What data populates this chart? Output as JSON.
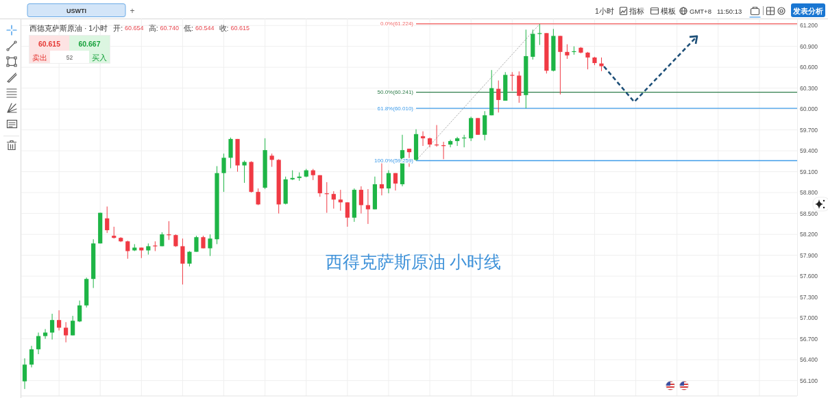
{
  "chart_data": {
    "type": "candlestick",
    "title": "西德克萨斯原油 · 1小时",
    "categories": [
      null,
      null,
      null,
      null,
      null,
      null,
      null,
      null,
      null,
      null,
      null,
      null,
      null,
      null,
      null,
      null,
      null,
      null,
      null,
      null,
      null,
      null,
      null,
      null,
      null,
      null,
      null,
      null,
      null,
      null,
      null,
      null,
      null,
      null,
      null,
      null,
      null,
      null,
      null,
      null,
      null,
      null,
      null,
      null,
      null,
      null,
      null,
      null,
      null,
      null,
      null,
      null,
      null,
      null,
      null,
      null,
      null,
      null,
      null,
      null,
      null,
      null,
      null,
      null,
      null,
      null,
      null,
      null,
      null,
      null,
      null,
      null,
      null,
      null,
      null,
      null,
      null,
      null,
      null,
      null,
      null,
      null,
      null,
      null,
      null,
      null,
      null,
      null,
      null,
      null,
      null,
      null,
      null,
      null,
      null,
      null,
      null,
      null,
      null,
      null,
      null,
      null,
      null,
      null,
      null,
      null,
      null,
      null,
      null,
      null,
      null,
      null,
      null
    ],
    "ohlc": [
      [
        56.09,
        56.42,
        55.98,
        56.33
      ],
      [
        56.33,
        56.6,
        56.29,
        56.55
      ],
      [
        56.55,
        56.79,
        56.48,
        56.74
      ],
      [
        56.74,
        56.84,
        56.7,
        56.79
      ],
      [
        56.79,
        57.06,
        56.69,
        56.97
      ],
      [
        56.97,
        57.11,
        56.82,
        56.86
      ],
      [
        56.86,
        56.94,
        56.65,
        56.75
      ],
      [
        56.75,
        57.03,
        56.75,
        56.96
      ],
      [
        56.95,
        57.25,
        56.94,
        57.18
      ],
      [
        57.18,
        57.58,
        57.15,
        57.56
      ],
      [
        57.56,
        58.13,
        57.43,
        58.07
      ],
      [
        58.07,
        58.51,
        58.07,
        58.51
      ],
      [
        58.43,
        58.6,
        58.22,
        58.26
      ],
      [
        58.18,
        58.31,
        58.14,
        58.15
      ],
      [
        58.15,
        58.16,
        58.09,
        58.1
      ],
      [
        58.1,
        58.11,
        57.85,
        57.96
      ],
      [
        57.97,
        58.06,
        57.96,
        58.01
      ],
      [
        58.01,
        58.01,
        57.86,
        57.97
      ],
      [
        57.97,
        58.07,
        57.91,
        58.03
      ],
      [
        58.04,
        58.1,
        57.96,
        58.03
      ],
      [
        58.03,
        58.23,
        58.03,
        58.2
      ],
      [
        58.2,
        58.39,
        58.12,
        58.19
      ],
      [
        58.19,
        58.2,
        58.02,
        58.03
      ],
      [
        58.03,
        58.14,
        57.48,
        57.78
      ],
      [
        57.78,
        57.96,
        57.74,
        57.95
      ],
      [
        57.95,
        58.18,
        57.95,
        58.16
      ],
      [
        58.16,
        58.18,
        58.0,
        58.0
      ],
      [
        58.0,
        58.2,
        57.89,
        58.14
      ],
      [
        58.13,
        59.18,
        58.06,
        59.08
      ],
      [
        59.08,
        59.36,
        58.81,
        59.3
      ],
      [
        59.3,
        59.59,
        59.15,
        59.57
      ],
      [
        59.57,
        59.57,
        59.1,
        59.19
      ],
      [
        59.19,
        59.26,
        58.94,
        59.24
      ],
      [
        59.24,
        59.25,
        58.8,
        58.81
      ],
      [
        58.81,
        58.86,
        58.62,
        58.63
      ],
      [
        58.87,
        59.58,
        58.85,
        59.41
      ],
      [
        59.33,
        59.36,
        59.17,
        59.27
      ],
      [
        59.27,
        59.28,
        58.5,
        58.63
      ],
      [
        58.64,
        59.03,
        58.63,
        58.99
      ],
      [
        58.99,
        59.12,
        58.98,
        59.01
      ],
      [
        59.01,
        59.09,
        58.97,
        59.03
      ],
      [
        59.03,
        59.14,
        59.02,
        59.12
      ],
      [
        59.12,
        59.14,
        58.98,
        59.05
      ],
      [
        59.05,
        59.05,
        58.74,
        58.79
      ],
      [
        58.79,
        58.95,
        58.51,
        58.78
      ],
      [
        58.78,
        58.82,
        58.57,
        58.7
      ],
      [
        58.7,
        58.84,
        58.54,
        58.66
      ],
      [
        58.66,
        58.66,
        58.31,
        58.44
      ],
      [
        58.44,
        58.86,
        58.38,
        58.84
      ],
      [
        58.84,
        58.89,
        58.5,
        58.62
      ],
      [
        58.62,
        58.85,
        58.35,
        58.56
      ],
      [
        58.56,
        59.03,
        58.56,
        58.92
      ],
      [
        58.92,
        59.24,
        58.76,
        58.86
      ],
      [
        58.86,
        59.12,
        58.79,
        59.08
      ],
      [
        59.08,
        59.08,
        58.83,
        58.93
      ],
      [
        58.92,
        59.63,
        58.89,
        59.41
      ],
      [
        59.43,
        59.43,
        59.17,
        59.38
      ],
      [
        59.27,
        59.71,
        59.26,
        59.64
      ],
      [
        59.61,
        59.68,
        59.47,
        59.58
      ],
      [
        59.58,
        59.59,
        59.45,
        59.49
      ],
      [
        59.49,
        59.77,
        59.46,
        59.48
      ],
      [
        59.48,
        59.53,
        59.28,
        59.47
      ],
      [
        59.49,
        59.56,
        59.45,
        59.54
      ],
      [
        59.54,
        59.6,
        59.47,
        59.58
      ],
      [
        59.58,
        59.63,
        59.45,
        59.59
      ],
      [
        59.58,
        59.89,
        59.54,
        59.87
      ],
      [
        59.87,
        59.87,
        59.63,
        59.63
      ],
      [
        59.63,
        59.97,
        59.55,
        59.91
      ],
      [
        59.91,
        60.56,
        59.91,
        60.3
      ],
      [
        60.29,
        60.41,
        59.95,
        60.13
      ],
      [
        60.12,
        60.53,
        60.12,
        60.49
      ],
      [
        60.49,
        60.53,
        60.26,
        60.48
      ],
      [
        60.48,
        60.54,
        60.09,
        60.19
      ],
      [
        60.2,
        61.14,
        60.01,
        60.76
      ],
      [
        60.75,
        61.14,
        60.71,
        61.08
      ],
      [
        61.08,
        61.22,
        60.92,
        61.09
      ],
      [
        61.09,
        61.09,
        60.51,
        60.55
      ],
      [
        60.55,
        61.15,
        60.54,
        61.05
      ],
      [
        61.05,
        61.05,
        60.21,
        60.82
      ],
      [
        60.82,
        60.93,
        60.72,
        60.77
      ],
      [
        60.82,
        60.9,
        60.78,
        60.83
      ],
      [
        60.88,
        60.89,
        60.8,
        60.81
      ],
      [
        60.81,
        60.82,
        60.57,
        60.74
      ],
      [
        60.74,
        60.75,
        60.63,
        60.66
      ],
      [
        60.654,
        60.74,
        60.544,
        60.615
      ],
      null,
      null,
      null,
      null,
      null,
      null,
      null,
      null,
      null,
      null,
      null,
      null,
      null,
      null,
      null,
      null,
      null,
      null,
      null,
      null,
      null,
      null,
      null,
      null,
      null,
      null,
      null,
      null
    ],
    "colors": [
      "#1eb546",
      "#1eb546",
      "#1eb546",
      "#1eb546",
      "#1eb546",
      "#f03a44",
      "#f03a44",
      "#1eb546",
      "#1eb546",
      "#1eb546",
      "#1eb546",
      "#1eb546",
      "#f03a44",
      "#f03a44",
      "#f03a44",
      "#f03a44",
      "#1eb546",
      "#f03a44",
      "#1eb546",
      "#f03a44",
      "#1eb546",
      "#f03a44",
      "#f03a44",
      "#f03a44",
      "#1eb546",
      "#1eb546",
      "#f03a44",
      "#1eb546",
      "#1eb546",
      "#1eb546",
      "#1eb546",
      "#f03a44",
      "#1eb546",
      "#f03a44",
      "#f03a44",
      "#1eb546",
      "#f03a44",
      "#f03a44",
      "#1eb546",
      "#1eb546",
      "#1eb546",
      "#1eb546",
      "#f03a44",
      "#f03a44",
      "#f03a44",
      "#f03a44",
      "#f03a44",
      "#f03a44",
      "#1eb546",
      "#f03a44",
      "#f03a44",
      "#1eb546",
      "#f03a44",
      "#1eb546",
      "#f03a44",
      "#1eb546",
      "#f03a44",
      "#1eb546",
      "#f03a44",
      "#f03a44",
      "#f03a44",
      "#f03a44",
      "#1eb546",
      "#1eb546",
      "#1eb546",
      "#1eb546",
      "#f03a44",
      "#1eb546",
      "#1eb546",
      "#f03a44",
      "#1eb546",
      "#f03a44",
      "#f03a44",
      "#1eb546",
      "#1eb546",
      "#1eb546",
      "#f03a44",
      "#1eb546",
      "#f03a44",
      "#f03a44",
      "#1eb546",
      "#f03a44",
      "#f03a44",
      "#f03a44",
      "#f03a44",
      null,
      null,
      null,
      null,
      null,
      null,
      null,
      null,
      null,
      null,
      null,
      null,
      null,
      null,
      null,
      null,
      null,
      null,
      null,
      null,
      null,
      null,
      null,
      null,
      null,
      null,
      null,
      null
    ],
    "series": [
      {
        "type": "line",
        "color": "#a9a9a9",
        "line_style": "dotted",
        "values": [
          null,
          null,
          null,
          null,
          null,
          null,
          null,
          null,
          null,
          null,
          null,
          null,
          null,
          null,
          null,
          null,
          null,
          null,
          null,
          null,
          null,
          null,
          null,
          null,
          null,
          null,
          null,
          null,
          null,
          null,
          null,
          null,
          null,
          null,
          null,
          null,
          null,
          null,
          null,
          null,
          null,
          null,
          null,
          null,
          null,
          null,
          null,
          null,
          null,
          null,
          null,
          null,
          null,
          null,
          null,
          null,
          null,
          59.26,
          null,
          null,
          null,
          null,
          null,
          null,
          null,
          null,
          null,
          null,
          null,
          null,
          null,
          null,
          null,
          null,
          null,
          61.22,
          null,
          null,
          null,
          null,
          null,
          null,
          null,
          null,
          null,
          null,
          null,
          null,
          null,
          null,
          null,
          null,
          null,
          null,
          null,
          null,
          null,
          null,
          null,
          null,
          null,
          null,
          null,
          null,
          null,
          null,
          null,
          null,
          null,
          null,
          null,
          null,
          null
        ]
      }
    ],
    "ylim": [
      55.88,
      61.3
    ],
    "yticks": [
      {
        "value": 56.1,
        "label": "56.100"
      },
      {
        "value": 56.4,
        "label": "56.400"
      },
      {
        "value": 56.7,
        "label": "56.700"
      },
      {
        "value": 57.0,
        "label": "57.000"
      },
      {
        "value": 57.3,
        "label": "57.300"
      },
      {
        "value": 57.6,
        "label": "57.600"
      },
      {
        "value": 57.9,
        "label": "57.900"
      },
      {
        "value": 58.2,
        "label": "58.200"
      },
      {
        "value": 58.5,
        "label": "58.500"
      },
      {
        "value": 58.8,
        "label": "58.800"
      },
      {
        "value": 59.1,
        "label": "59.100"
      },
      {
        "value": 59.4,
        "label": "59.400"
      },
      {
        "value": 59.7,
        "label": "59.700"
      },
      {
        "value": 60.0,
        "label": "60.000"
      },
      {
        "value": 60.3,
        "label": "60.300"
      },
      {
        "value": 60.6,
        "label": "60.600"
      },
      {
        "value": 60.9,
        "label": "60.900"
      },
      {
        "value": 61.2,
        "label": "61.200"
      }
    ],
    "grid": true,
    "tick_labels": "y",
    "ref_lines": [
      {
        "axis": "y",
        "value": 61.224,
        "label": "0.0%(61.224)",
        "color": "#f26d6d",
        "line_style": "solid"
      },
      {
        "axis": "y",
        "value": 60.241,
        "label": "50.0%(60.241)",
        "color": "#2e7d4a",
        "line_style": "solid"
      },
      {
        "axis": "y",
        "value": 60.01,
        "label": "61.8%(60.010)",
        "color": "#3d9be9",
        "line_style": "solid"
      },
      {
        "axis": "y",
        "value": 59.259,
        "label": "100.0%(59.259)",
        "color": "#3d9be9",
        "line_style": "solid"
      }
    ],
    "annotations": [
      "USWTI",
      "+",
      "1小时",
      "指标",
      "模板",
      "GMT+8",
      "11:50:13",
      "发表分析",
      "开:",
      "60.654",
      "高:",
      "60.740",
      "低:",
      "60.544",
      "收:",
      "60.615",
      "60.615",
      "60.667",
      "卖出",
      "52",
      "买入",
      "西得克萨斯原油 小时线"
    ]
  }
}
